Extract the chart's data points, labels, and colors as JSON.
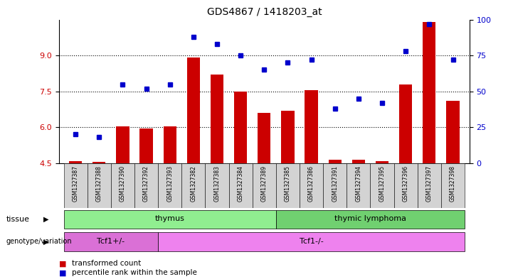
{
  "title": "GDS4867 / 1418203_at",
  "samples": [
    "GSM1327387",
    "GSM1327388",
    "GSM1327390",
    "GSM1327392",
    "GSM1327393",
    "GSM1327382",
    "GSM1327383",
    "GSM1327384",
    "GSM1327389",
    "GSM1327385",
    "GSM1327386",
    "GSM1327391",
    "GSM1327394",
    "GSM1327395",
    "GSM1327396",
    "GSM1327397",
    "GSM1327398"
  ],
  "bar_values": [
    4.6,
    4.55,
    6.05,
    5.95,
    6.05,
    8.9,
    8.2,
    7.5,
    6.6,
    6.7,
    7.55,
    4.65,
    4.65,
    4.6,
    7.8,
    10.4,
    7.1
  ],
  "dot_percentiles": [
    20,
    18,
    55,
    52,
    55,
    88,
    83,
    75,
    65,
    70,
    72,
    38,
    45,
    42,
    78,
    97,
    72
  ],
  "ylim_left": [
    4.5,
    10.5
  ],
  "ylim_right": [
    0,
    100
  ],
  "yticks_left": [
    4.5,
    6.0,
    7.5,
    9.0
  ],
  "yticks_right": [
    0,
    25,
    50,
    75,
    100
  ],
  "tissue_groups": [
    {
      "label": "thymus",
      "start": 0,
      "end": 8,
      "color": "#90EE90"
    },
    {
      "label": "thymic lymphoma",
      "start": 9,
      "end": 16,
      "color": "#70D070"
    }
  ],
  "genotype_groups": [
    {
      "label": "Tcf1+/-",
      "start": 0,
      "end": 3,
      "color": "#DA70D6"
    },
    {
      "label": "Tcf1-/-",
      "start": 4,
      "end": 16,
      "color": "#EE82EE"
    }
  ],
  "bar_color": "#CC0000",
  "dot_color": "#0000CC",
  "axis_left_color": "#CC0000",
  "axis_right_color": "#0000CC",
  "bg_color": "#FFFFFF",
  "tick_label_bg": "#D3D3D3"
}
